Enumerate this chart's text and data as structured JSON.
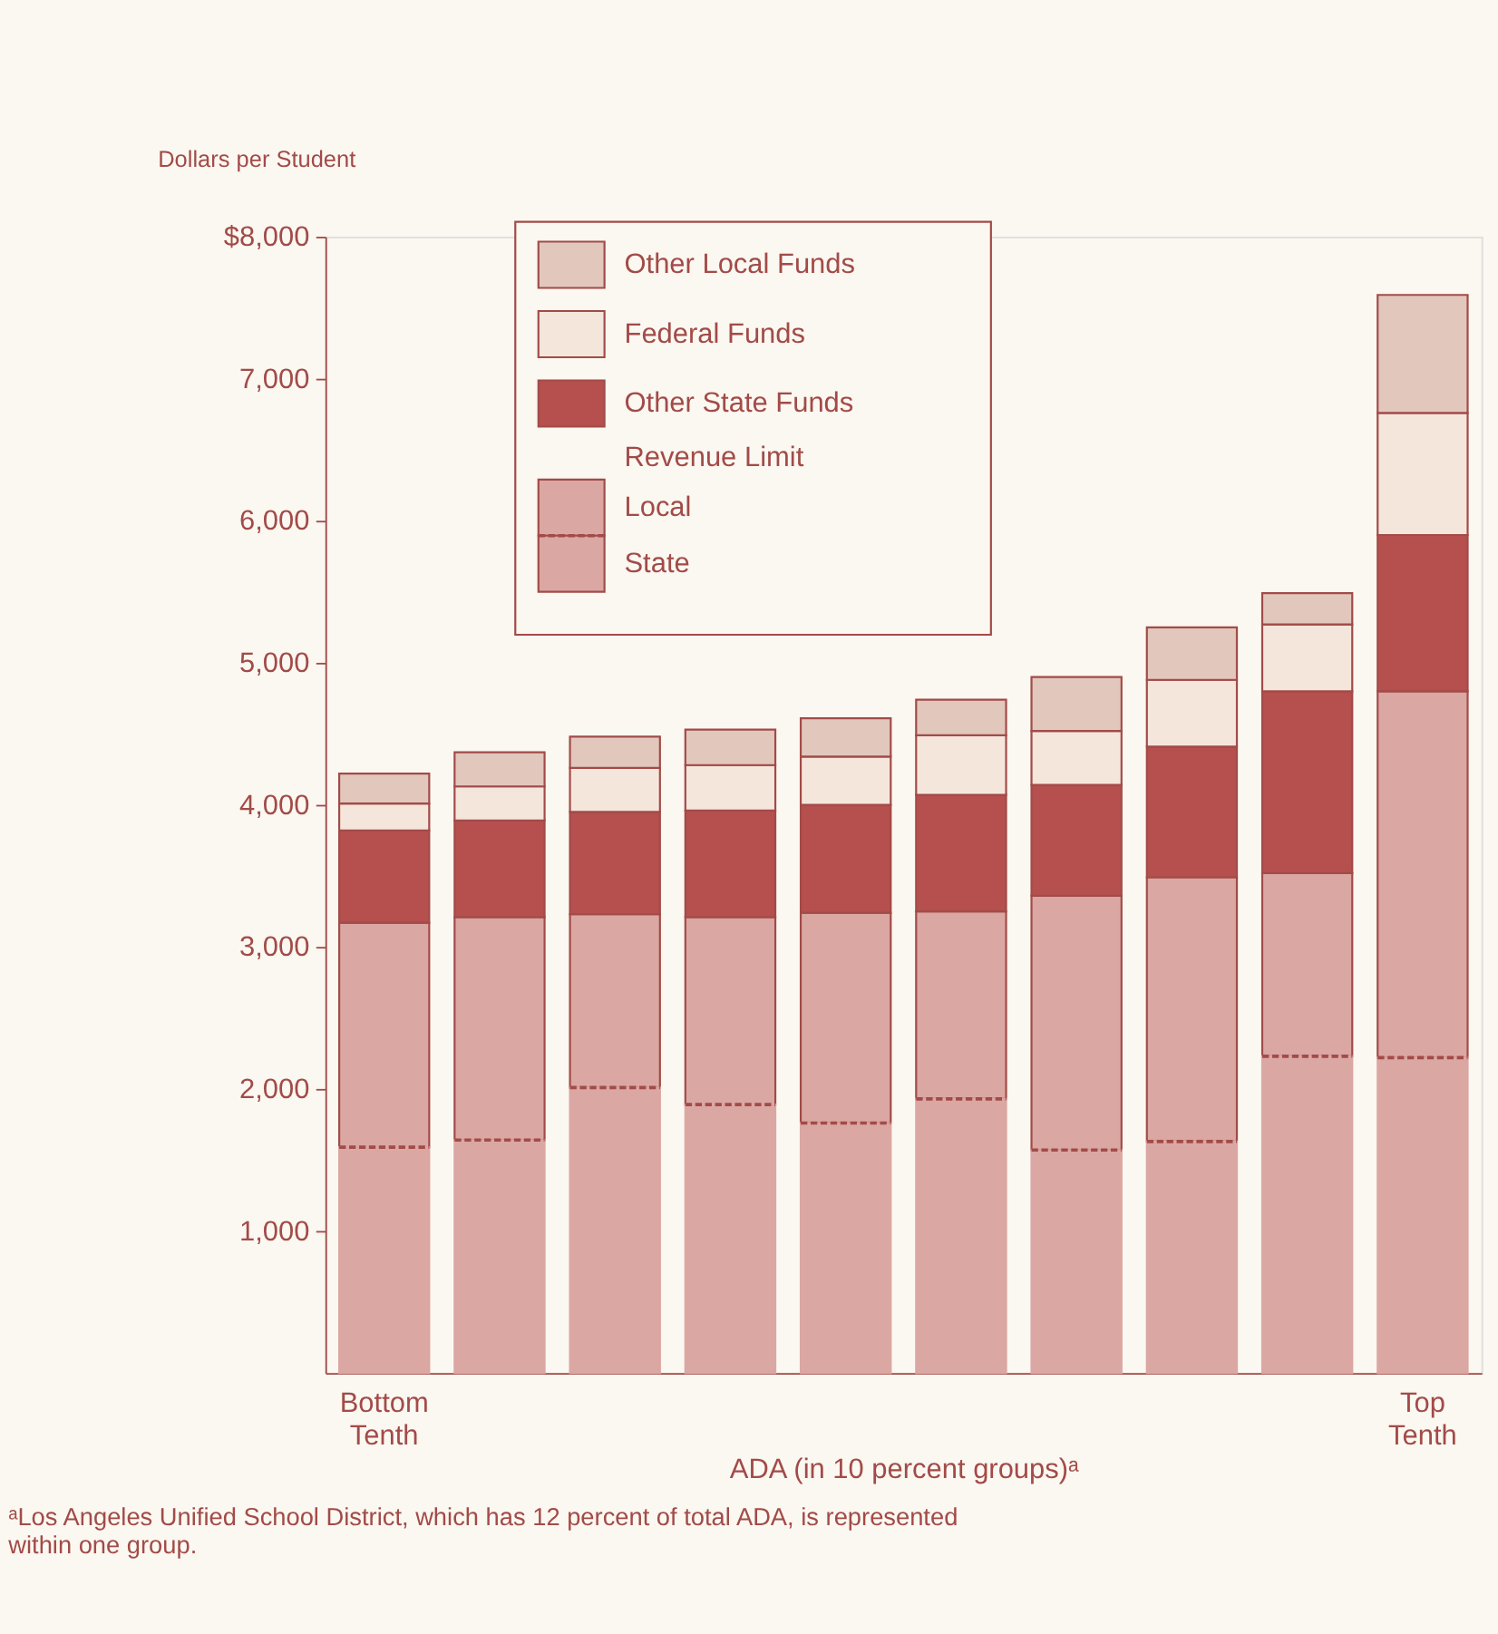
{
  "chart_data": {
    "type": "bar",
    "stacked": true,
    "ylabel": "Dollars per Student",
    "xlabel": "ADA (in 10 percent groups)ᵃ",
    "legend_title": "Revenue Limit",
    "categories": [
      "Bottom Tenth",
      null,
      null,
      null,
      null,
      null,
      null,
      null,
      null,
      "Top Tenth"
    ],
    "series": [
      {
        "name": "State",
        "color": "#dba7a3",
        "line_style": "dashed",
        "values": [
          1590,
          1640,
          2010,
          1890,
          1760,
          1930,
          1570,
          1630,
          2230,
          2220
        ]
      },
      {
        "name": "Local",
        "color": "#dba7a3",
        "values": [
          1580,
          1570,
          1220,
          1320,
          1480,
          1320,
          1790,
          1860,
          1290,
          2580
        ]
      },
      {
        "name": "Other State Funds",
        "color": "#b5504f",
        "values": [
          650,
          680,
          720,
          750,
          760,
          820,
          780,
          920,
          1280,
          1100
        ]
      },
      {
        "name": "Federal Funds",
        "color": "#f5e6dc",
        "values": [
          190,
          240,
          310,
          320,
          340,
          420,
          380,
          470,
          470,
          860
        ]
      },
      {
        "name": "Other Local Funds",
        "color": "#e2c7bd",
        "values": [
          210,
          240,
          220,
          250,
          270,
          250,
          380,
          370,
          220,
          830
        ]
      }
    ],
    "ylim": [
      0,
      8000
    ],
    "yticks": [
      {
        "value": 1000,
        "label": "1,000"
      },
      {
        "value": 2000,
        "label": "2,000"
      },
      {
        "value": 3000,
        "label": "3,000"
      },
      {
        "value": 4000,
        "label": "4,000"
      },
      {
        "value": 5000,
        "label": "5,000"
      },
      {
        "value": 6000,
        "label": "6,000"
      },
      {
        "value": 7000,
        "label": "7,000"
      },
      {
        "value": 8000,
        "label": "$8,000"
      }
    ],
    "grid": false,
    "legend": "top left",
    "annotations": [
      "ᵃLos Angeles Unified School District, which has 12 percent of total ADA, is represented within one group."
    ]
  }
}
